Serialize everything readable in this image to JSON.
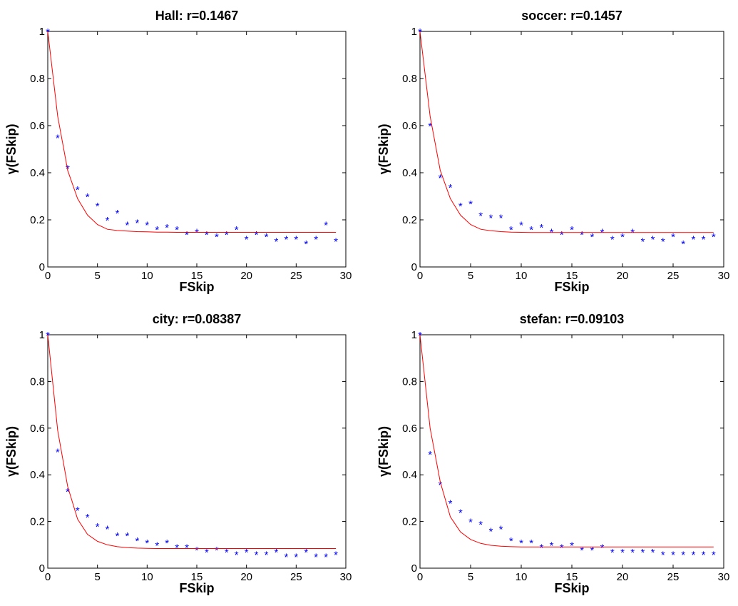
{
  "chart_data": [
    {
      "type": "scatter",
      "title": "Hall: r=0.1467",
      "xlabel": "FSkip",
      "ylabel": "γ(FSkip)",
      "xlim": [
        0,
        30
      ],
      "ylim": [
        0,
        1
      ],
      "xticks": [
        "0",
        "5",
        "10",
        "15",
        "20",
        "25",
        "30"
      ],
      "yticks": [
        "0",
        "0.2",
        "0.4",
        "0.6",
        "0.8",
        "1"
      ],
      "grid": false,
      "series": [
        {
          "kind": "scatter",
          "marker": "*",
          "color": "#0000ff",
          "x": [
            0,
            1,
            2,
            3,
            4,
            5,
            6,
            7,
            8,
            9,
            10,
            11,
            12,
            13,
            14,
            15,
            16,
            17,
            18,
            19,
            20,
            21,
            22,
            23,
            24,
            25,
            26,
            27,
            28,
            29
          ],
          "y": [
            1.0,
            0.55,
            0.42,
            0.33,
            0.3,
            0.26,
            0.2,
            0.23,
            0.18,
            0.19,
            0.18,
            0.16,
            0.17,
            0.16,
            0.14,
            0.15,
            0.14,
            0.13,
            0.14,
            0.16,
            0.12,
            0.14,
            0.13,
            0.11,
            0.12,
            0.12,
            0.1,
            0.12,
            0.18,
            0.11
          ]
        },
        {
          "kind": "line",
          "color": "#ff0000",
          "x": [
            0,
            1,
            2,
            3,
            4,
            5,
            6,
            7,
            8,
            9,
            10,
            11,
            12,
            13,
            14,
            15,
            16,
            17,
            18,
            19,
            20,
            21,
            22,
            23,
            24,
            25,
            26,
            27,
            28,
            29
          ],
          "y": [
            1.0,
            0.64,
            0.41,
            0.29,
            0.22,
            0.18,
            0.16,
            0.155,
            0.152,
            0.15,
            0.149,
            0.148,
            0.148,
            0.147,
            0.147,
            0.147,
            0.147,
            0.147,
            0.147,
            0.147,
            0.147,
            0.147,
            0.147,
            0.147,
            0.147,
            0.147,
            0.147,
            0.147,
            0.147,
            0.147
          ]
        }
      ]
    },
    {
      "type": "scatter",
      "title": "soccer: r=0.1457",
      "xlabel": "FSkip",
      "ylabel": "γ(FSkip)",
      "xlim": [
        0,
        30
      ],
      "ylim": [
        0,
        1
      ],
      "xticks": [
        "0",
        "5",
        "10",
        "15",
        "20",
        "25",
        "30"
      ],
      "yticks": [
        "0",
        "0.2",
        "0.4",
        "0.6",
        "0.8",
        "1"
      ],
      "grid": false,
      "series": [
        {
          "kind": "scatter",
          "marker": "*",
          "color": "#0000ff",
          "x": [
            0,
            1,
            2,
            3,
            4,
            5,
            6,
            7,
            8,
            9,
            10,
            11,
            12,
            13,
            14,
            15,
            16,
            17,
            18,
            19,
            20,
            21,
            22,
            23,
            24,
            25,
            26,
            27,
            28,
            29
          ],
          "y": [
            1.0,
            0.6,
            0.38,
            0.34,
            0.26,
            0.27,
            0.22,
            0.21,
            0.21,
            0.16,
            0.18,
            0.16,
            0.17,
            0.15,
            0.14,
            0.16,
            0.14,
            0.13,
            0.15,
            0.12,
            0.13,
            0.15,
            0.11,
            0.12,
            0.11,
            0.13,
            0.1,
            0.12,
            0.12,
            0.13
          ]
        },
        {
          "kind": "line",
          "color": "#ff0000",
          "x": [
            0,
            1,
            2,
            3,
            4,
            5,
            6,
            7,
            8,
            9,
            10,
            11,
            12,
            13,
            14,
            15,
            16,
            17,
            18,
            19,
            20,
            21,
            22,
            23,
            24,
            25,
            26,
            27,
            28,
            29
          ],
          "y": [
            1.0,
            0.64,
            0.41,
            0.29,
            0.22,
            0.18,
            0.16,
            0.154,
            0.15,
            0.148,
            0.147,
            0.146,
            0.146,
            0.146,
            0.146,
            0.146,
            0.146,
            0.146,
            0.146,
            0.146,
            0.146,
            0.146,
            0.146,
            0.146,
            0.146,
            0.146,
            0.146,
            0.146,
            0.146,
            0.146
          ]
        }
      ]
    },
    {
      "type": "scatter",
      "title": "city: r=0.08387",
      "xlabel": "FSkip",
      "ylabel": "γ(FSkip)",
      "xlim": [
        0,
        30
      ],
      "ylim": [
        0,
        1
      ],
      "xticks": [
        "0",
        "5",
        "10",
        "15",
        "20",
        "25",
        "30"
      ],
      "yticks": [
        "0",
        "0.2",
        "0.4",
        "0.6",
        "0.8",
        "1"
      ],
      "grid": false,
      "series": [
        {
          "kind": "scatter",
          "marker": "*",
          "color": "#0000ff",
          "x": [
            0,
            1,
            2,
            3,
            4,
            5,
            6,
            7,
            8,
            9,
            10,
            11,
            12,
            13,
            14,
            15,
            16,
            17,
            18,
            19,
            20,
            21,
            22,
            23,
            24,
            25,
            26,
            27,
            28,
            29
          ],
          "y": [
            1.0,
            0.5,
            0.33,
            0.25,
            0.22,
            0.18,
            0.17,
            0.14,
            0.14,
            0.12,
            0.11,
            0.1,
            0.11,
            0.09,
            0.09,
            0.08,
            0.07,
            0.08,
            0.07,
            0.06,
            0.07,
            0.06,
            0.06,
            0.07,
            0.05,
            0.05,
            0.07,
            0.05,
            0.05,
            0.06
          ]
        },
        {
          "kind": "line",
          "color": "#ff0000",
          "x": [
            0,
            1,
            2,
            3,
            4,
            5,
            6,
            7,
            8,
            9,
            10,
            11,
            12,
            13,
            14,
            15,
            16,
            17,
            18,
            19,
            20,
            21,
            22,
            23,
            24,
            25,
            26,
            27,
            28,
            29
          ],
          "y": [
            1.0,
            0.59,
            0.35,
            0.21,
            0.145,
            0.115,
            0.1,
            0.092,
            0.088,
            0.086,
            0.085,
            0.084,
            0.084,
            0.084,
            0.084,
            0.084,
            0.084,
            0.084,
            0.084,
            0.084,
            0.084,
            0.084,
            0.084,
            0.084,
            0.084,
            0.084,
            0.084,
            0.084,
            0.084,
            0.084
          ]
        }
      ]
    },
    {
      "type": "scatter",
      "title": "stefan: r=0.09103",
      "xlabel": "FSkip",
      "ylabel": "γ(FSkip)",
      "xlim": [
        0,
        30
      ],
      "ylim": [
        0,
        1
      ],
      "xticks": [
        "0",
        "5",
        "10",
        "15",
        "20",
        "25",
        "30"
      ],
      "yticks": [
        "0",
        "0.2",
        "0.4",
        "0.6",
        "0.8",
        "1"
      ],
      "grid": false,
      "series": [
        {
          "kind": "scatter",
          "marker": "*",
          "color": "#0000ff",
          "x": [
            0,
            1,
            2,
            3,
            4,
            5,
            6,
            7,
            8,
            9,
            10,
            11,
            12,
            13,
            14,
            15,
            16,
            17,
            18,
            19,
            20,
            21,
            22,
            23,
            24,
            25,
            26,
            27,
            28,
            29
          ],
          "y": [
            1.0,
            0.49,
            0.36,
            0.28,
            0.24,
            0.2,
            0.19,
            0.16,
            0.17,
            0.12,
            0.11,
            0.11,
            0.09,
            0.1,
            0.09,
            0.1,
            0.08,
            0.08,
            0.09,
            0.07,
            0.07,
            0.07,
            0.07,
            0.07,
            0.06,
            0.06,
            0.06,
            0.06,
            0.06,
            0.06
          ]
        },
        {
          "kind": "line",
          "color": "#ff0000",
          "x": [
            0,
            1,
            2,
            3,
            4,
            5,
            6,
            7,
            8,
            9,
            10,
            11,
            12,
            13,
            14,
            15,
            16,
            17,
            18,
            19,
            20,
            21,
            22,
            23,
            24,
            25,
            26,
            27,
            28,
            29
          ],
          "y": [
            1.0,
            0.6,
            0.37,
            0.22,
            0.155,
            0.123,
            0.106,
            0.098,
            0.094,
            0.092,
            0.091,
            0.091,
            0.091,
            0.091,
            0.091,
            0.091,
            0.091,
            0.091,
            0.091,
            0.091,
            0.091,
            0.091,
            0.091,
            0.091,
            0.091,
            0.091,
            0.091,
            0.091,
            0.091,
            0.091
          ]
        }
      ]
    }
  ]
}
